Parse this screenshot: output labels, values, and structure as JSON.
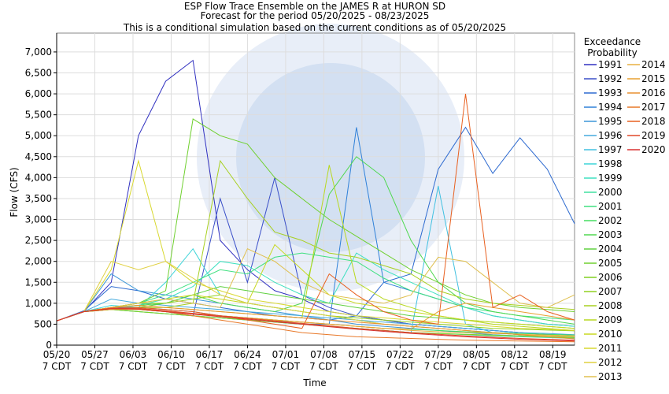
{
  "chart_data": {
    "type": "line",
    "title": "ESP Flow Trace Ensemble on the JAMES R at HURON SD",
    "subtitle": "Forecast for the period 05/20/2025 - 08/23/2025",
    "note": "This is a conditional simulation based on the current conditions as of 05/20/2025",
    "x_label": "Time",
    "y_label": "Flow (CFS)",
    "legend_title": [
      "Exceedance",
      "Probability"
    ],
    "x_tick_sublabel": "7 CDT",
    "x": [
      "05/20",
      "05/25",
      "05/30",
      "06/04",
      "06/09",
      "06/14",
      "06/19",
      "06/24",
      "06/29",
      "07/04",
      "07/09",
      "07/14",
      "07/19",
      "07/24",
      "07/29",
      "08/03",
      "08/08",
      "08/13",
      "08/18",
      "08/23"
    ],
    "xlim": [
      "05/20",
      "08/23"
    ],
    "xticks": [
      "05/20",
      "05/27",
      "06/03",
      "06/10",
      "06/17",
      "06/24",
      "07/01",
      "07/08",
      "07/15",
      "07/22",
      "07/29",
      "08/05",
      "08/12",
      "08/19"
    ],
    "ylim": [
      0,
      7450
    ],
    "yticks": [
      0,
      500,
      {
        "value": 1000,
        "label": "1,000"
      },
      {
        "value": 1500,
        "label": "1,500"
      },
      {
        "value": 2000,
        "label": "2,000"
      },
      {
        "value": 2500,
        "label": "2,500"
      },
      {
        "value": 3000,
        "label": "3,000"
      },
      {
        "value": 3500,
        "label": "3,500"
      },
      {
        "value": 4000,
        "label": "4,000"
      },
      {
        "value": 4500,
        "label": "4,500"
      },
      {
        "value": 5000,
        "label": "5,000"
      },
      {
        "value": 5500,
        "label": "5,500"
      },
      {
        "value": 6000,
        "label": "6,000"
      },
      {
        "value": 6500,
        "label": "6,500"
      },
      {
        "value": 7000,
        "label": "7,000"
      }
    ],
    "grid": true,
    "legend": "right",
    "series": [
      {
        "name": "1991",
        "color": "#3030c0",
        "values": [
          580,
          800,
          1500,
          5000,
          6300,
          6800,
          2500,
          1800,
          1300,
          1100,
          800,
          700,
          600,
          500,
          450,
          400,
          350,
          300,
          250,
          200
        ]
      },
      {
        "name": "1992",
        "color": "#3a4fc8",
        "values": [
          580,
          800,
          900,
          850,
          800,
          700,
          3500,
          1500,
          4000,
          1200,
          900,
          700,
          600,
          500,
          450,
          400,
          350,
          300,
          250,
          200
        ]
      },
      {
        "name": "1993",
        "color": "#2d6ad0",
        "values": [
          580,
          820,
          1400,
          1300,
          1100,
          1000,
          900,
          800,
          700,
          650,
          600,
          700,
          1500,
          1700,
          4200,
          5200,
          4100,
          4950,
          4200,
          2900
        ]
      },
      {
        "name": "1994",
        "color": "#2f80d8",
        "values": [
          580,
          800,
          900,
          900,
          850,
          800,
          700,
          650,
          600,
          500,
          500,
          5200,
          1500,
          1300,
          1100,
          900,
          700,
          600,
          500,
          450
        ]
      },
      {
        "name": "1995",
        "color": "#3c96d8",
        "values": [
          580,
          800,
          1700,
          1300,
          1200,
          1100,
          1000,
          900,
          800,
          700,
          600,
          500,
          450,
          400,
          350,
          300,
          250,
          220,
          200,
          180
        ]
      },
      {
        "name": "1996",
        "color": "#45aadd",
        "values": [
          580,
          800,
          1100,
          1000,
          950,
          900,
          850,
          800,
          750,
          700,
          650,
          600,
          550,
          500,
          450,
          400,
          350,
          300,
          280,
          250
        ]
      },
      {
        "name": "1997",
        "color": "#40c0e0",
        "values": [
          580,
          800,
          850,
          800,
          750,
          700,
          650,
          600,
          550,
          500,
          450,
          400,
          350,
          300,
          3800,
          500,
          300,
          250,
          200,
          180
        ]
      },
      {
        "name": "1998",
        "color": "#3cd4d8",
        "values": [
          580,
          800,
          950,
          900,
          1500,
          2300,
          1200,
          1000,
          900,
          800,
          700,
          600,
          500,
          450,
          400,
          350,
          300,
          250,
          220,
          200
        ]
      },
      {
        "name": "1999",
        "color": "#3ee0c0",
        "values": [
          580,
          800,
          900,
          950,
          1100,
          1400,
          2000,
          1900,
          1500,
          1200,
          1000,
          2200,
          1800,
          1500,
          1200,
          900,
          700,
          600,
          500,
          450
        ]
      },
      {
        "name": "2000",
        "color": "#40e0a0",
        "values": [
          580,
          800,
          850,
          800,
          750,
          700,
          650,
          600,
          550,
          500,
          450,
          400,
          350,
          300,
          280,
          250,
          220,
          200,
          180,
          160
        ]
      },
      {
        "name": "2001",
        "color": "#40e080",
        "values": [
          580,
          800,
          900,
          1000,
          1200,
          1500,
          1800,
          1700,
          2100,
          2200,
          2100,
          2000,
          1600,
          1300,
          1100,
          900,
          800,
          700,
          650,
          600
        ]
      },
      {
        "name": "2002",
        "color": "#44dd60",
        "values": [
          580,
          800,
          850,
          850,
          800,
          750,
          700,
          650,
          600,
          550,
          500,
          450,
          400,
          380,
          350,
          320,
          300,
          280,
          260,
          240
        ]
      },
      {
        "name": "2003",
        "color": "#50d850",
        "values": [
          580,
          800,
          900,
          950,
          1000,
          1200,
          1000,
          900,
          800,
          1000,
          3600,
          4500,
          4000,
          2500,
          1500,
          1000,
          800,
          700,
          600,
          500
        ]
      },
      {
        "name": "2004",
        "color": "#60d040",
        "values": [
          580,
          800,
          850,
          900,
          1000,
          1200,
          1400,
          1300,
          1200,
          1100,
          1000,
          900,
          800,
          700,
          650,
          600,
          550,
          500,
          450,
          400
        ]
      },
      {
        "name": "2005",
        "color": "#70d030",
        "values": [
          580,
          800,
          900,
          1000,
          1300,
          5400,
          5000,
          4800,
          4000,
          3500,
          3000,
          2600,
          2200,
          1800,
          1500,
          1200,
          1000,
          900,
          850,
          800
        ]
      },
      {
        "name": "2006",
        "color": "#80d020",
        "values": [
          580,
          800,
          850,
          800,
          750,
          700,
          650,
          600,
          550,
          500,
          450,
          400,
          350,
          300,
          280,
          260,
          240,
          220,
          200,
          180
        ]
      },
      {
        "name": "2007",
        "color": "#90d020",
        "values": [
          580,
          800,
          900,
          1000,
          1000,
          1100,
          1200,
          1000,
          900,
          800,
          700,
          650,
          600,
          550,
          500,
          450,
          400,
          380,
          360,
          340
        ]
      },
      {
        "name": "2008",
        "color": "#a8d020",
        "values": [
          580,
          800,
          850,
          900,
          900,
          1000,
          4400,
          3500,
          2700,
          2500,
          2200,
          2100,
          1900,
          1700,
          1300,
          1100,
          1000,
          950,
          900,
          850
        ]
      },
      {
        "name": "2009",
        "color": "#b8d820",
        "values": [
          580,
          800,
          900,
          950,
          900,
          850,
          800,
          750,
          700,
          650,
          4300,
          1500,
          1100,
          900,
          700,
          600,
          500,
          450,
          400,
          350
        ]
      },
      {
        "name": "2010",
        "color": "#c8d820",
        "values": [
          580,
          800,
          900,
          1000,
          1100,
          1200,
          1100,
          1000,
          2400,
          1800,
          1200,
          1000,
          900,
          800,
          700,
          600,
          550,
          500,
          450,
          400
        ]
      },
      {
        "name": "2011",
        "color": "#d8d830",
        "values": [
          580,
          800,
          1800,
          4400,
          2000,
          1500,
          1300,
          1100,
          1000,
          900,
          800,
          700,
          650,
          600,
          550,
          500,
          450,
          400,
          380,
          350
        ]
      },
      {
        "name": "2012",
        "color": "#e0d040",
        "values": [
          580,
          800,
          2000,
          1800,
          2000,
          1600,
          1200,
          1000,
          900,
          800,
          700,
          600,
          500,
          450,
          400,
          350,
          300,
          250,
          220,
          200
        ]
      },
      {
        "name": "2013",
        "color": "#e0c050",
        "values": [
          580,
          800,
          900,
          1000,
          1100,
          1000,
          900,
          2300,
          2000,
          1500,
          1200,
          1100,
          1000,
          1200,
          2100,
          2000,
          1500,
          1000,
          900,
          1200
        ]
      },
      {
        "name": "2014",
        "color": "#e8b040",
        "values": [
          580,
          800,
          900,
          850,
          800,
          750,
          700,
          650,
          600,
          550,
          500,
          450,
          400,
          350,
          320,
          300,
          280,
          260,
          240,
          220
        ]
      },
      {
        "name": "2015",
        "color": "#e8a030",
        "values": [
          580,
          800,
          850,
          850,
          800,
          750,
          700,
          650,
          600,
          550,
          500,
          450,
          400,
          380,
          800,
          1000,
          900,
          800,
          700,
          600
        ]
      },
      {
        "name": "2016",
        "color": "#e89030",
        "values": [
          580,
          800,
          900,
          950,
          900,
          850,
          800,
          750,
          700,
          650,
          600,
          550,
          500,
          450,
          400,
          350,
          300,
          250,
          200,
          150
        ]
      },
      {
        "name": "2017",
        "color": "#e87828",
        "values": [
          580,
          800,
          880,
          880,
          800,
          700,
          600,
          500,
          400,
          300,
          250,
          200,
          180,
          160,
          140,
          120,
          110,
          100,
          90,
          80
        ]
      },
      {
        "name": "2018",
        "color": "#e86020",
        "values": [
          580,
          800,
          880,
          900,
          850,
          800,
          700,
          600,
          500,
          400,
          1700,
          1200,
          800,
          600,
          500,
          6000,
          900,
          1200,
          800,
          600
        ]
      },
      {
        "name": "2019",
        "color": "#e04828",
        "values": [
          580,
          800,
          880,
          880,
          820,
          760,
          700,
          640,
          580,
          520,
          460,
          400,
          350,
          300,
          260,
          220,
          190,
          160,
          140,
          120
        ]
      },
      {
        "name": "2020",
        "color": "#d83030",
        "values": [
          580,
          800,
          870,
          860,
          800,
          740,
          680,
          620,
          560,
          500,
          440,
          380,
          330,
          280,
          240,
          200,
          170,
          140,
          120,
          100
        ]
      }
    ]
  }
}
